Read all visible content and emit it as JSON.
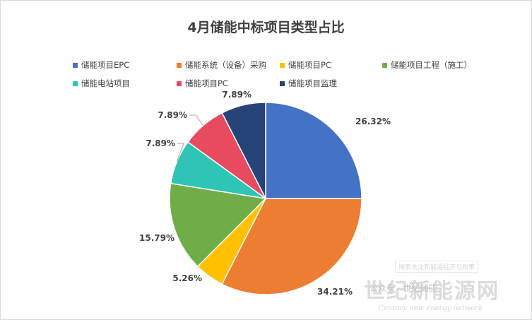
{
  "chart_data": {
    "type": "pie",
    "title": "4月储能中标项目类型占比",
    "legend_position": "top",
    "categories": [
      "储能项目EPC",
      "储能系统（设备）采购",
      "储能项目PC",
      "储能项目工程（施工）",
      "储能电站项目",
      "储能项目PC",
      "储能项目监理"
    ],
    "values": [
      26.32,
      34.21,
      5.26,
      15.79,
      7.89,
      7.89,
      7.89
    ],
    "value_labels": [
      "26.32%",
      "34.21%",
      "5.26%",
      "15.79%",
      "7.89%",
      "7.89%",
      "7.89%"
    ],
    "colors": [
      "#4472c4",
      "#ed7d31",
      "#ffc000",
      "#70ad47",
      "#2ec4b6",
      "#e84a5f",
      "#264478"
    ]
  },
  "watermark": {
    "top_text": "搜索关注新能源经济与政策",
    "main_text": "世纪新能源网",
    "sub_text": "公众号 · 世纪储能",
    "english_text": "Century new energy network"
  }
}
